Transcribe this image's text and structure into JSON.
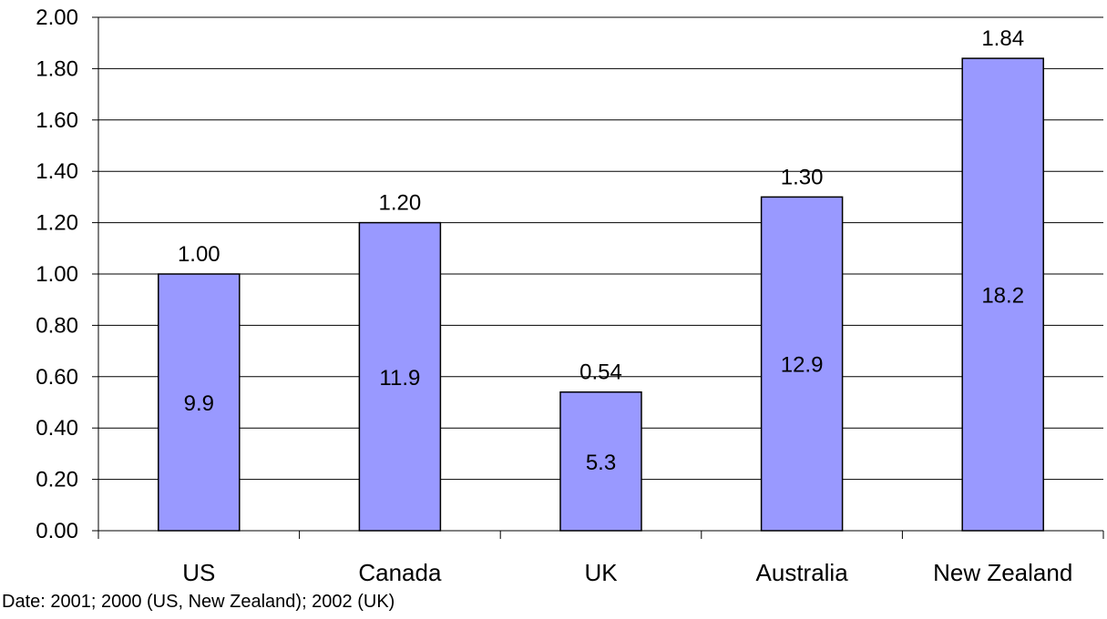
{
  "chart_data": {
    "type": "bar",
    "categories": [
      "US",
      "Canada",
      "UK",
      "Australia",
      "New Zealand"
    ],
    "values": [
      1.0,
      1.2,
      0.54,
      1.3,
      1.84
    ],
    "value_labels": [
      "1.00",
      "1.20",
      "0.54",
      "1.30",
      "1.84"
    ],
    "inner_labels": [
      "9.9",
      "11.9",
      "5.3",
      "12.9",
      "18.2"
    ],
    "ylim": [
      0,
      2.0
    ],
    "y_ticks": [
      "0.00",
      "0.20",
      "0.40",
      "0.60",
      "0.80",
      "1.00",
      "1.20",
      "1.40",
      "1.60",
      "1.80",
      "2.00"
    ],
    "y_tick_values": [
      0,
      0.2,
      0.4,
      0.6,
      0.8,
      1.0,
      1.2,
      1.4,
      1.6,
      1.8,
      2.0
    ],
    "grid": true,
    "legend": "none",
    "bar_color": "#9999ff",
    "footnote": "Date: 2001; 2000 (US, New Zealand); 2002 (UK)"
  }
}
